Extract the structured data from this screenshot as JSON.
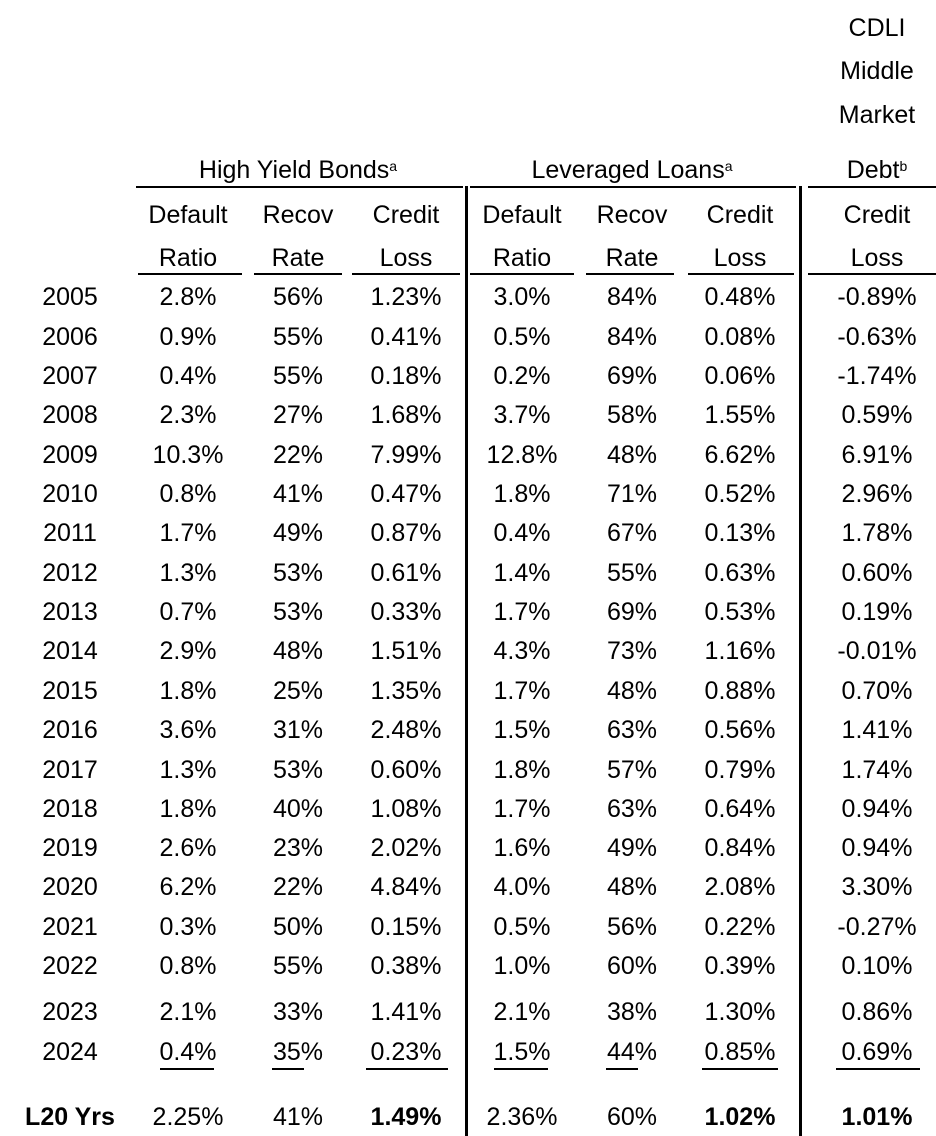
{
  "headers": {
    "cdli_lines": [
      "CDLI",
      "Middle",
      "Market"
    ],
    "cdli_debt": "Debt",
    "cdli_debt_sup": "b",
    "group_hy": "High Yield Bonds",
    "group_hy_sup": "a",
    "group_ll": "Leveraged Loans",
    "group_ll_sup": "a",
    "col_top": [
      "Default",
      "Recov",
      "Credit",
      "Default",
      "Recov",
      "Credit",
      "Credit"
    ],
    "col_bottom": [
      "Ratio",
      "Rate",
      "Loss",
      "Ratio",
      "Rate",
      "Loss",
      "Loss"
    ]
  },
  "rows": [
    {
      "year": "2005",
      "v": [
        "2.8%",
        "56%",
        "1.23%",
        "3.0%",
        "84%",
        "0.48%",
        "-0.89%"
      ]
    },
    {
      "year": "2006",
      "v": [
        "0.9%",
        "55%",
        "0.41%",
        "0.5%",
        "84%",
        "0.08%",
        "-0.63%"
      ]
    },
    {
      "year": "2007",
      "v": [
        "0.4%",
        "55%",
        "0.18%",
        "0.2%",
        "69%",
        "0.06%",
        "-1.74%"
      ]
    },
    {
      "year": "2008",
      "v": [
        "2.3%",
        "27%",
        "1.68%",
        "3.7%",
        "58%",
        "1.55%",
        "0.59%"
      ]
    },
    {
      "year": "2009",
      "v": [
        "10.3%",
        "22%",
        "7.99%",
        "12.8%",
        "48%",
        "6.62%",
        "6.91%"
      ]
    },
    {
      "year": "2010",
      "v": [
        "0.8%",
        "41%",
        "0.47%",
        "1.8%",
        "71%",
        "0.52%",
        "2.96%"
      ]
    },
    {
      "year": "2011",
      "v": [
        "1.7%",
        "49%",
        "0.87%",
        "0.4%",
        "67%",
        "0.13%",
        "1.78%"
      ]
    },
    {
      "year": "2012",
      "v": [
        "1.3%",
        "53%",
        "0.61%",
        "1.4%",
        "55%",
        "0.63%",
        "0.60%"
      ]
    },
    {
      "year": "2013",
      "v": [
        "0.7%",
        "53%",
        "0.33%",
        "1.7%",
        "69%",
        "0.53%",
        "0.19%"
      ]
    },
    {
      "year": "2014",
      "v": [
        "2.9%",
        "48%",
        "1.51%",
        "4.3%",
        "73%",
        "1.16%",
        "-0.01%"
      ]
    },
    {
      "year": "2015",
      "v": [
        "1.8%",
        "25%",
        "1.35%",
        "1.7%",
        "48%",
        "0.88%",
        "0.70%"
      ]
    },
    {
      "year": "2016",
      "v": [
        "3.6%",
        "31%",
        "2.48%",
        "1.5%",
        "63%",
        "0.56%",
        "1.41%"
      ]
    },
    {
      "year": "2017",
      "v": [
        "1.3%",
        "53%",
        "0.60%",
        "1.8%",
        "57%",
        "0.79%",
        "1.74%"
      ]
    },
    {
      "year": "2018",
      "v": [
        "1.8%",
        "40%",
        "1.08%",
        "1.7%",
        "63%",
        "0.64%",
        "0.94%"
      ]
    },
    {
      "year": "2019",
      "v": [
        "2.6%",
        "23%",
        "2.02%",
        "1.6%",
        "49%",
        "0.84%",
        "0.94%"
      ]
    },
    {
      "year": "2020",
      "v": [
        "6.2%",
        "22%",
        "4.84%",
        "4.0%",
        "48%",
        "2.08%",
        "3.30%"
      ]
    },
    {
      "year": "2021",
      "v": [
        "0.3%",
        "50%",
        "0.15%",
        "0.5%",
        "56%",
        "0.22%",
        "-0.27%"
      ]
    },
    {
      "year": "2022",
      "v": [
        "0.8%",
        "55%",
        "0.38%",
        "1.0%",
        "60%",
        "0.39%",
        "0.10%"
      ]
    },
    {
      "year": "2023",
      "v": [
        "2.1%",
        "33%",
        "1.41%",
        "2.1%",
        "38%",
        "1.30%",
        "0.86%"
      ]
    },
    {
      "year": "2024",
      "v": [
        "0.4%",
        "35%",
        "0.23%",
        "1.5%",
        "44%",
        "0.85%",
        "0.69%"
      ]
    }
  ],
  "summary": {
    "label": "L20 Yrs",
    "v": [
      "2.25%",
      "41%",
      "1.49%",
      "2.36%",
      "60%",
      "1.02%",
      "1.01%"
    ]
  }
}
